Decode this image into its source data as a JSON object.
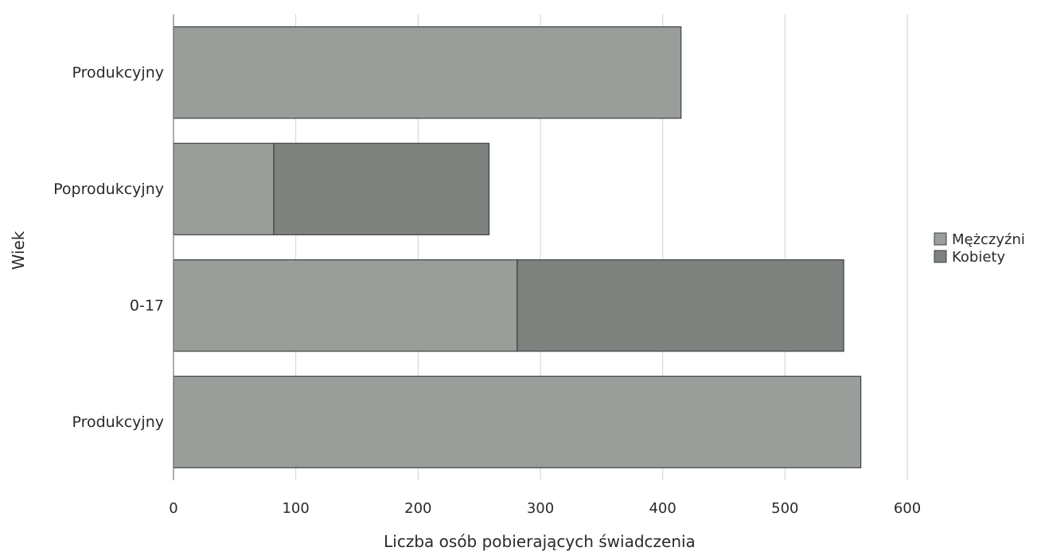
{
  "chart_data": {
    "type": "bar",
    "orientation": "horizontal",
    "stacked": true,
    "categories": [
      "Produkcyjny",
      "Poprodukcyjny",
      "0-17",
      "Produkcyjny"
    ],
    "series": [
      {
        "name": "Mężczyźni",
        "values": [
          415,
          82,
          281,
          562
        ],
        "color": "#9a9e9a"
      },
      {
        "name": "Kobiety",
        "values": [
          0,
          176,
          267,
          0
        ],
        "color": "#7d827e"
      }
    ],
    "xlabel": "Liczba osób pobierających świadczenia",
    "ylabel": "Wiek",
    "xlim": [
      0,
      600
    ],
    "xticks": [
      "0",
      "100",
      "200",
      "300",
      "400",
      "500",
      "600"
    ],
    "grid": true,
    "legend_position": "right"
  }
}
